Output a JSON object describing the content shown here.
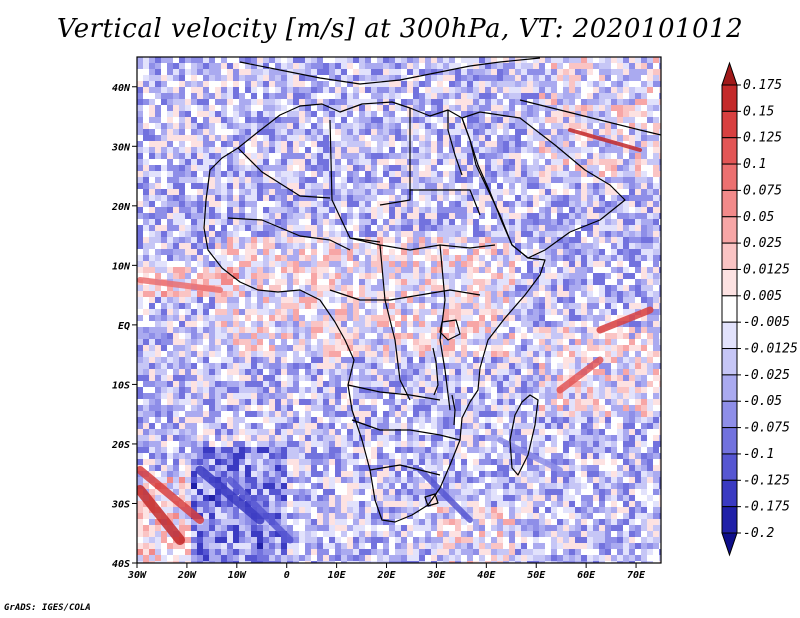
{
  "title": "Vertical velocity [m/s] at 300hPa, VT: 2020101012",
  "credit": "GrADS: IGES/COLA",
  "map": {
    "variable": "Vertical velocity",
    "units": "m/s",
    "level": "300hPa",
    "valid_time": "2020101012",
    "lon_range": [
      -30,
      75
    ],
    "lat_range": [
      -40,
      45
    ],
    "lon_ticks": [
      {
        "value": -30,
        "label": "30W"
      },
      {
        "value": -20,
        "label": "20W"
      },
      {
        "value": -10,
        "label": "10W"
      },
      {
        "value": 0,
        "label": "0"
      },
      {
        "value": 10,
        "label": "10E"
      },
      {
        "value": 20,
        "label": "20E"
      },
      {
        "value": 30,
        "label": "30E"
      },
      {
        "value": 40,
        "label": "40E"
      },
      {
        "value": 50,
        "label": "50E"
      },
      {
        "value": 60,
        "label": "60E"
      },
      {
        "value": 70,
        "label": "70E"
      }
    ],
    "lat_ticks": [
      {
        "value": 40,
        "label": "40N"
      },
      {
        "value": 30,
        "label": "30N"
      },
      {
        "value": 20,
        "label": "20N"
      },
      {
        "value": 10,
        "label": "10N"
      },
      {
        "value": 0,
        "label": "EQ"
      },
      {
        "value": -10,
        "label": "10S"
      },
      {
        "value": -20,
        "label": "20S"
      },
      {
        "value": -30,
        "label": "30S"
      },
      {
        "value": -40,
        "label": "40S"
      }
    ]
  },
  "colorbar": {
    "labels": [
      "0.175",
      "0.15",
      "0.125",
      "0.1",
      "0.075",
      "0.05",
      "0.025",
      "0.0125",
      "0.005",
      "-0.005",
      "-0.0125",
      "-0.025",
      "-0.05",
      "-0.075",
      "-0.1",
      "-0.125",
      "-0.175",
      "-0.2"
    ],
    "colors": [
      "#a11a1a",
      "#c42a2a",
      "#d84040",
      "#e35656",
      "#ec7070",
      "#f28a8a",
      "#f7a6a6",
      "#fac4c4",
      "#fde2e2",
      "#ffffff",
      "#e2e2fc",
      "#c6c6f6",
      "#aaaaf0",
      "#8e8ee8",
      "#7272de",
      "#5656d2",
      "#3a3ac2",
      "#2020a8",
      "#0e0e8a"
    ]
  }
}
